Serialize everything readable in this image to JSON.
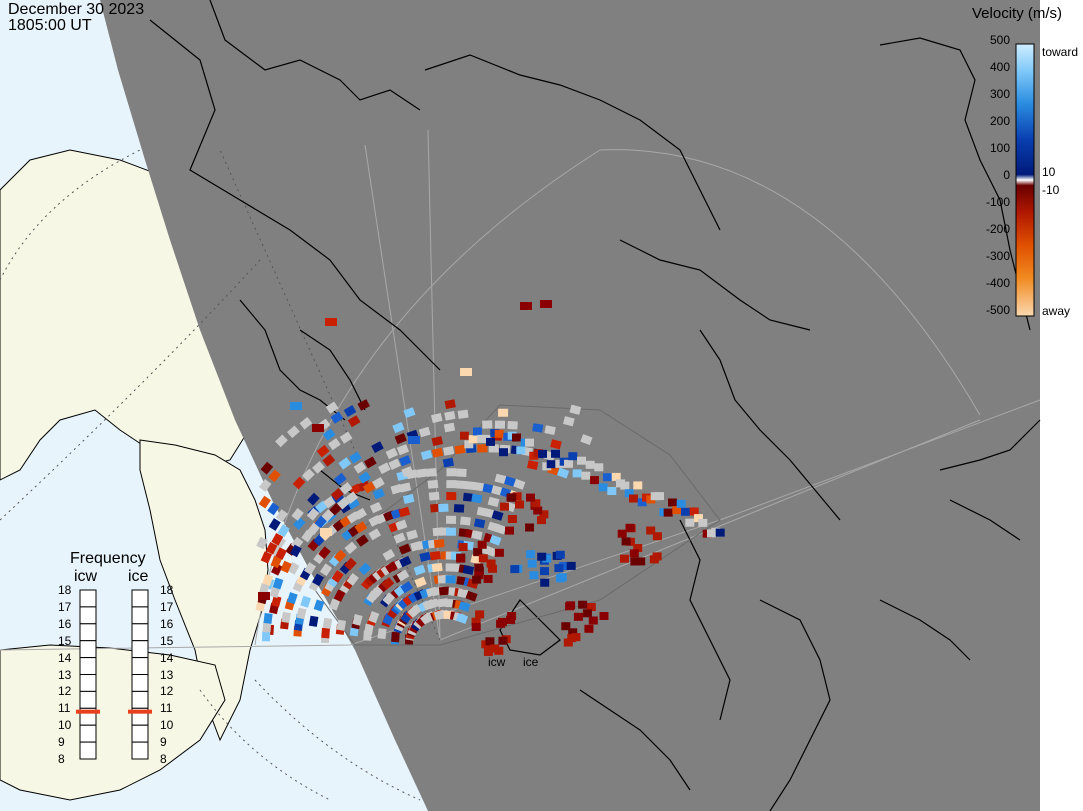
{
  "header": {
    "date": "December 30 2023",
    "time": "1805:00 UT"
  },
  "legend": {
    "title": "Velocity (m/s)",
    "toward_label": "toward",
    "away_label": "away",
    "ticks": [
      "500",
      "400",
      "300",
      "200",
      "100",
      "0",
      "-100",
      "-200",
      "-300",
      "-400",
      "-500"
    ],
    "threshold_positive": "10",
    "threshold_negative": "-10"
  },
  "frequency": {
    "title": "Frequency",
    "radars": [
      {
        "name": "icw",
        "selected_mhz": 10.8
      },
      {
        "name": "ice",
        "selected_mhz": 10.8
      }
    ],
    "scale": [
      "18",
      "17",
      "16",
      "15",
      "14",
      "13",
      "12",
      "11",
      "10",
      "9",
      "8"
    ]
  },
  "radar_labels": [
    "icw",
    "ice"
  ],
  "colors": {
    "ocean_day": "#e8f4fc",
    "land_day": "#f7f7e6",
    "night": "#808080",
    "coast": "#000000",
    "grid": "#a8a8a8",
    "ground_scatter": "#c8c8c8",
    "freq_marker": "#e8401c"
  }
}
